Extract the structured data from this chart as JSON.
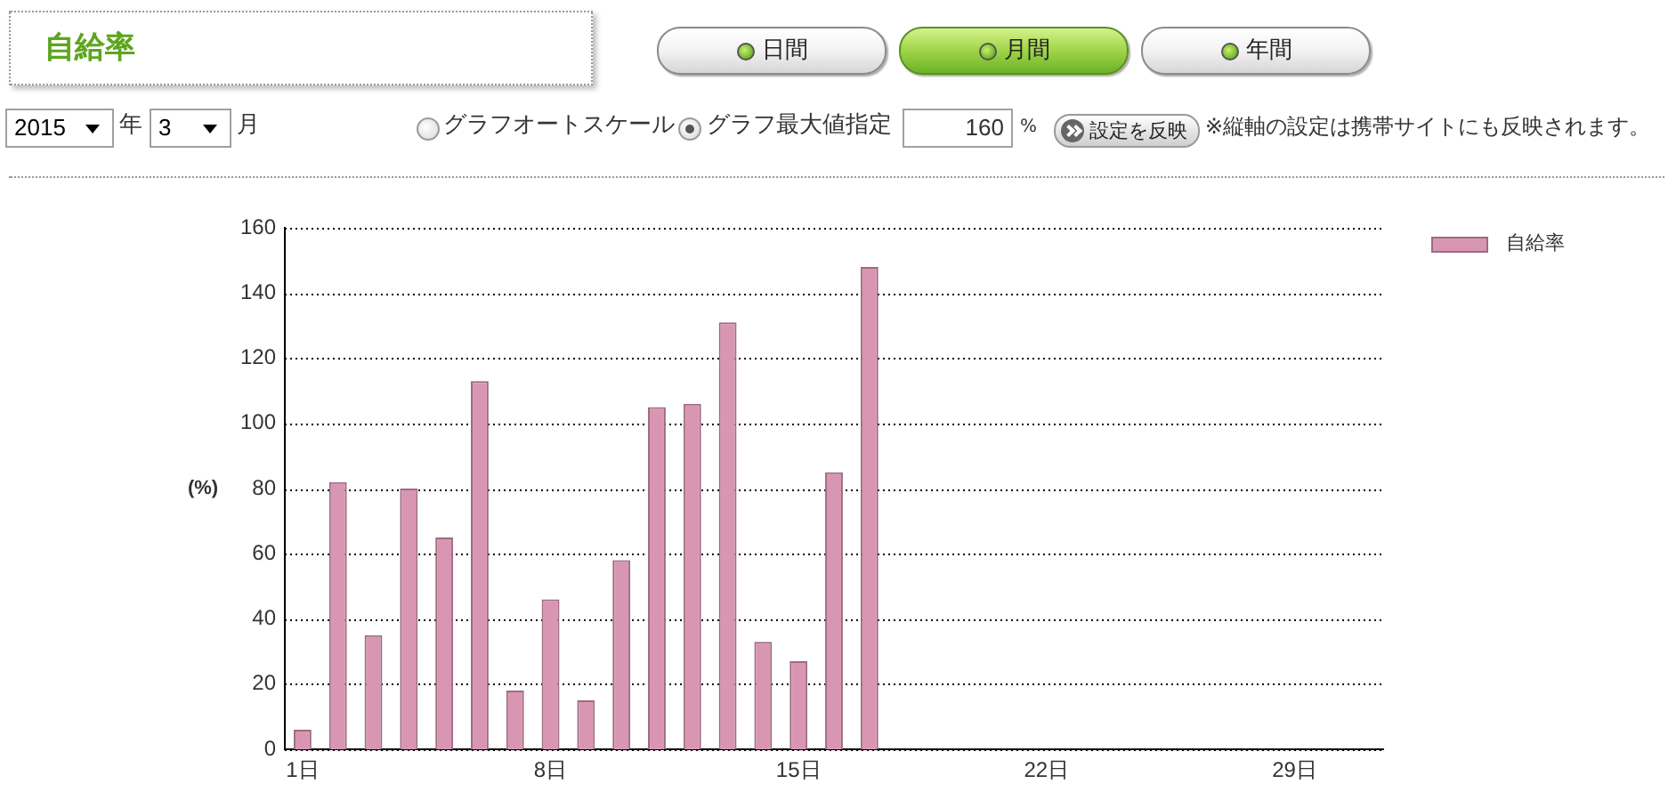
{
  "chart_data": {
    "type": "bar",
    "title": "自給率",
    "ylabel": "(%)",
    "categories": [
      "1日",
      null,
      null,
      null,
      null,
      null,
      null,
      "8日",
      null,
      null,
      null,
      null,
      null,
      null,
      "15日",
      null,
      null,
      null,
      null,
      null,
      null,
      "22日",
      null,
      null,
      null,
      null,
      null,
      null,
      "29日",
      null,
      null
    ],
    "series": [
      {
        "name": "自給率",
        "color": "#d996b3",
        "values": [
          6,
          82,
          35,
          80,
          65,
          113,
          18,
          46,
          15,
          58,
          105,
          106,
          131,
          33,
          27,
          85,
          148,
          null,
          null,
          null,
          null,
          null,
          null,
          null,
          null,
          null,
          null,
          null,
          null,
          null,
          null
        ]
      }
    ],
    "ylim": [
      0,
      160
    ],
    "yticks": [
      0,
      20,
      40,
      60,
      80,
      100,
      120,
      140,
      160
    ],
    "grid": "y",
    "legend": "top right",
    "annotations": [
      "日間",
      "月間",
      "年間",
      "2015",
      "年",
      "3",
      "月",
      "グラフオートスケール",
      "グラフ最大値指定",
      "160",
      "%",
      "設定を反映",
      "※縦軸の設定は携帯サイトにも反映されます。"
    ]
  }
}
